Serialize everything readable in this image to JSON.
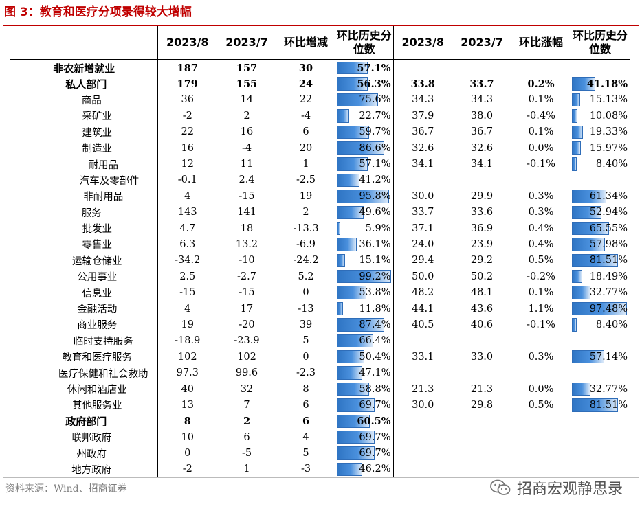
{
  "title": "图 3：教育和医疗分项录得较大增幅",
  "headers": {
    "left": [
      "2023/8",
      "2023/7",
      "环比增减",
      "环比历史分位数"
    ],
    "right": [
      "2023/8",
      "2023/7",
      "环比涨幅",
      "环比历史分位数"
    ]
  },
  "rows": [
    {
      "name": "非农新增就业",
      "indent": 0,
      "bold": true,
      "v1": "187",
      "v2": "157",
      "v3": "30",
      "p1": 57.1,
      "p1_text": "57.1%"
    },
    {
      "name": "私人部门",
      "indent": 1,
      "bold": true,
      "v1": "179",
      "v2": "155",
      "v3": "24",
      "p1": 56.3,
      "p1_text": "56.3%",
      "w1": "33.8",
      "w2": "33.7",
      "w3": "0.2%",
      "p2": 41.18,
      "p2_text": "41.18%"
    },
    {
      "name": "商品",
      "indent": 2,
      "v1": "36",
      "v2": "14",
      "v3": "22",
      "p1": 75.6,
      "p1_text": "75.6%",
      "w1": "34.3",
      "w2": "34.3",
      "w3": "0.1%",
      "p2": 15.13,
      "p2_text": "15.13%"
    },
    {
      "name": "采矿业",
      "indent": 3,
      "v1": "-2",
      "v2": "2",
      "v3": "-4",
      "p1": 22.7,
      "p1_text": "22.7%",
      "w1": "37.9",
      "w2": "38.0",
      "w3": "-0.4%",
      "p2": 10.08,
      "p2_text": "10.08%"
    },
    {
      "name": "建筑业",
      "indent": 3,
      "v1": "22",
      "v2": "16",
      "v3": "6",
      "p1": 59.7,
      "p1_text": "59.7%",
      "w1": "36.7",
      "w2": "36.7",
      "w3": "0.1%",
      "p2": 19.33,
      "p2_text": "19.33%"
    },
    {
      "name": "制造业",
      "indent": 3,
      "v1": "16",
      "v2": "-4",
      "v3": "20",
      "p1": 86.6,
      "p1_text": "86.6%",
      "w1": "32.6",
      "w2": "32.6",
      "w3": "0.0%",
      "p2": 15.97,
      "p2_text": "15.97%"
    },
    {
      "name": "耐用品",
      "indent": 4,
      "v1": "12",
      "v2": "11",
      "v3": "1",
      "p1": 57.1,
      "p1_text": "57.1%",
      "w1": "34.1",
      "w2": "34.1",
      "w3": "-0.1%",
      "p2": 8.4,
      "p2_text": "8.40%"
    },
    {
      "name": "汽车及零部件",
      "indent": 5,
      "v1": "-0.1",
      "v2": "2.4",
      "v3": "-2.5",
      "p1": 41.2,
      "p1_text": "41.2%"
    },
    {
      "name": "非耐用品",
      "indent": 4,
      "v1": "4",
      "v2": "-15",
      "v3": "19",
      "p1": 95.8,
      "p1_text": "95.8%",
      "w1": "30.0",
      "w2": "29.9",
      "w3": "0.3%",
      "p2": 61.34,
      "p2_text": "61.34%"
    },
    {
      "name": "服务",
      "indent": 2,
      "v1": "143",
      "v2": "141",
      "v3": "2",
      "p1": 49.6,
      "p1_text": "49.6%",
      "w1": "33.7",
      "w2": "33.6",
      "w3": "0.3%",
      "p2": 52.94,
      "p2_text": "52.94%"
    },
    {
      "name": "批发业",
      "indent": 3,
      "v1": "4.7",
      "v2": "18",
      "v3": "-13.3",
      "p1": 5.9,
      "p1_text": "5.9%",
      "w1": "37.1",
      "w2": "36.9",
      "w3": "0.4%",
      "p2": 65.55,
      "p2_text": "65.55%"
    },
    {
      "name": "零售业",
      "indent": 3,
      "v1": "6.3",
      "v2": "13.2",
      "v3": "-6.9",
      "p1": 36.1,
      "p1_text": "36.1%",
      "w1": "24.0",
      "w2": "23.9",
      "w3": "0.4%",
      "p2": 57.98,
      "p2_text": "57.98%"
    },
    {
      "name": "运输仓储业",
      "indent": 3,
      "v1": "-34.2",
      "v2": "-10",
      "v3": "-24.2",
      "p1": 15.1,
      "p1_text": "15.1%",
      "w1": "29.4",
      "w2": "29.2",
      "w3": "0.5%",
      "p2": 81.51,
      "p2_text": "81.51%"
    },
    {
      "name": "公用事业",
      "indent": 3,
      "v1": "2.5",
      "v2": "-2.7",
      "v3": "5.2",
      "p1": 99.2,
      "p1_text": "99.2%",
      "w1": "50.0",
      "w2": "50.2",
      "w3": "-0.2%",
      "p2": 18.49,
      "p2_text": "18.49%"
    },
    {
      "name": "信息业",
      "indent": 3,
      "v1": "-15",
      "v2": "-15",
      "v3": "0",
      "p1": 53.8,
      "p1_text": "53.8%",
      "w1": "48.2",
      "w2": "48.1",
      "w3": "0.1%",
      "p2": 32.77,
      "p2_text": "32.77%"
    },
    {
      "name": "金融活动",
      "indent": 3,
      "v1": "4",
      "v2": "17",
      "v3": "-13",
      "p1": 11.8,
      "p1_text": "11.8%",
      "w1": "44.1",
      "w2": "43.6",
      "w3": "1.1%",
      "p2": 97.48,
      "p2_text": "97.48%"
    },
    {
      "name": "商业服务",
      "indent": 3,
      "v1": "19",
      "v2": "-20",
      "v3": "39",
      "p1": 87.4,
      "p1_text": "87.4%",
      "w1": "40.5",
      "w2": "40.6",
      "w3": "-0.1%",
      "p2": 8.4,
      "p2_text": "8.40%"
    },
    {
      "name": "临时支持服务",
      "indent": 4,
      "v1": "-18.9",
      "v2": "-23.9",
      "v3": "5",
      "p1": 66.4,
      "p1_text": "66.4%"
    },
    {
      "name": "教育和医疗服务",
      "indent": 3,
      "v1": "102",
      "v2": "102",
      "v3": "0",
      "p1": 50.4,
      "p1_text": "50.4%",
      "w1": "33.1",
      "w2": "33.0",
      "w3": "0.3%",
      "p2": 57.14,
      "p2_text": "57.14%"
    },
    {
      "name": "医疗保健和社会救助",
      "indent": 4,
      "v1": "97.3",
      "v2": "99.6",
      "v3": "-2.3",
      "p1": 47.1,
      "p1_text": "47.1%"
    },
    {
      "name": "休闲和酒店业",
      "indent": 3,
      "v1": "40",
      "v2": "32",
      "v3": "8",
      "p1": 58.8,
      "p1_text": "58.8%",
      "w1": "21.3",
      "w2": "21.3",
      "w3": "0.0%",
      "p2": 32.77,
      "p2_text": "32.77%"
    },
    {
      "name": "其他服务业",
      "indent": 3,
      "v1": "13",
      "v2": "7",
      "v3": "6",
      "p1": 69.7,
      "p1_text": "69.7%",
      "w1": "30.0",
      "w2": "29.8",
      "w3": "0.5%",
      "p2": 81.51,
      "p2_text": "81.51%"
    },
    {
      "name": "政府部门",
      "indent": 1,
      "bold": true,
      "v1": "8",
      "v2": "2",
      "v3": "6",
      "p1": 60.5,
      "p1_text": "60.5%"
    },
    {
      "name": "联邦政府",
      "indent": 2,
      "v1": "10",
      "v2": "6",
      "v3": "4",
      "p1": 69.7,
      "p1_text": "69.7%"
    },
    {
      "name": "州政府",
      "indent": 2,
      "v1": "0",
      "v2": "-5",
      "v3": "5",
      "p1": 69.7,
      "p1_text": "69.7%"
    },
    {
      "name": "地方政府",
      "indent": 2,
      "v1": "-2",
      "v2": "1",
      "v3": "-3",
      "p1": 46.2,
      "p1_text": "46.2%"
    }
  ],
  "footer": {
    "source": "资料来源：Wind、招商证券",
    "brand": "招商宏观静思录",
    "brand_icon": "wechat-icon"
  },
  "colors": {
    "title": "#c00000",
    "bar": "#4a90dd",
    "bar_border": "#2f6db8"
  }
}
